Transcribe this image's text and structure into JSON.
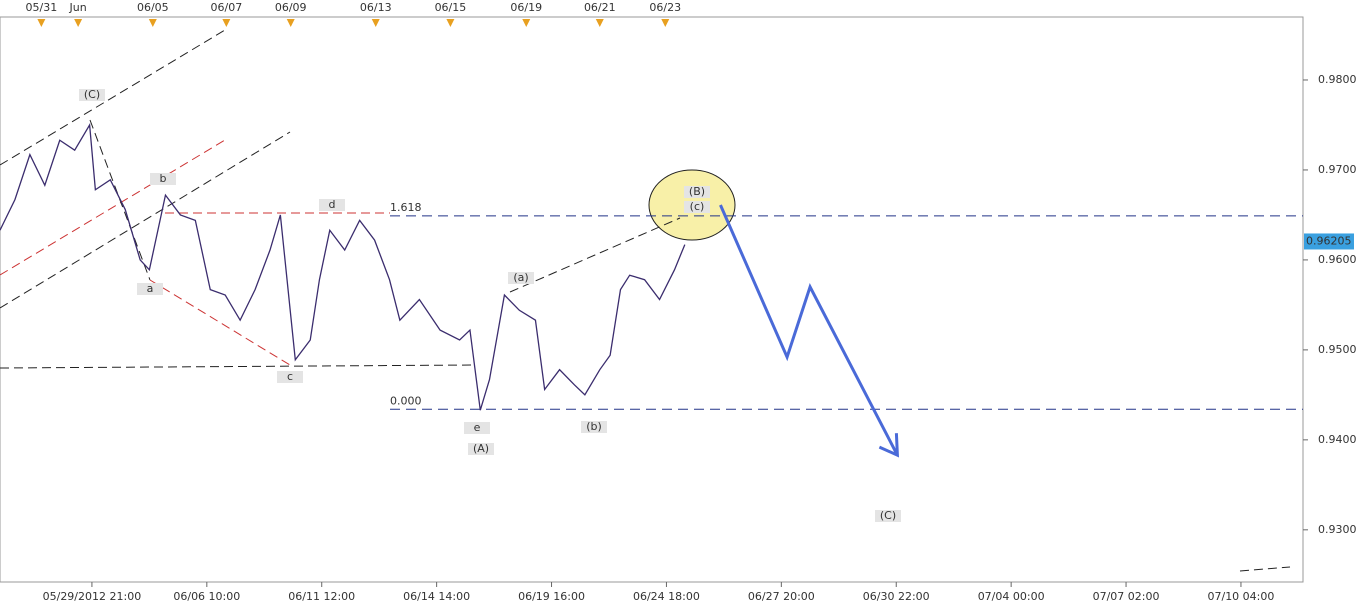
{
  "chart_data": {
    "type": "line",
    "ylim": [
      0.9242,
      0.987
    ],
    "yticks": [
      {
        "value": 0.93,
        "label": "0.9300"
      },
      {
        "value": 0.94,
        "label": "0.9400"
      },
      {
        "value": 0.95,
        "label": "0.9500"
      },
      {
        "value": 0.96,
        "label": "0.9600"
      },
      {
        "value": 0.97,
        "label": "0.9700"
      },
      {
        "value": 0.98,
        "label": "0.9800"
      }
    ],
    "xlim": [
      -0.8,
      10.54
    ],
    "xticks": [
      {
        "value": 0,
        "label": "05/29/2012 21:00"
      },
      {
        "value": 1,
        "label": "06/06 10:00"
      },
      {
        "value": 2,
        "label": "06/11 12:00"
      },
      {
        "value": 3,
        "label": "06/14 14:00"
      },
      {
        "value": 4,
        "label": "06/19 16:00"
      },
      {
        "value": 5,
        "label": "06/24 18:00"
      },
      {
        "value": 6,
        "label": "06/27 20:00"
      },
      {
        "value": 7,
        "label": "06/30 22:00"
      },
      {
        "value": 8,
        "label": "07/04 00:00"
      },
      {
        "value": 9,
        "label": "07/07 02:00"
      },
      {
        "value": 10,
        "label": "07/10 04:00"
      }
    ],
    "events": [
      {
        "value": -0.44,
        "label": "05/31"
      },
      {
        "value": -0.12,
        "label": "Jun"
      },
      {
        "value": 0.53,
        "label": "06/05"
      },
      {
        "value": 1.17,
        "label": "06/07"
      },
      {
        "value": 1.73,
        "label": "06/09"
      },
      {
        "value": 2.47,
        "label": "06/13"
      },
      {
        "value": 3.12,
        "label": "06/15"
      },
      {
        "value": 3.78,
        "label": "06/19"
      },
      {
        "value": 4.42,
        "label": "06/21"
      },
      {
        "value": 4.99,
        "label": "06/23"
      }
    ],
    "series": [
      {
        "color": "#3b2d6e",
        "x": [
          -0.8,
          -0.67,
          -0.54,
          -0.41,
          -0.28,
          -0.15,
          -0.02,
          0.03,
          0.16,
          0.29,
          0.42,
          0.5,
          0.64,
          0.77,
          0.9,
          1.03,
          1.16,
          1.29,
          1.42,
          1.55,
          1.64,
          1.77,
          1.9,
          1.98,
          2.07,
          2.2,
          2.33,
          2.46,
          2.59,
          2.68,
          2.85,
          3.03,
          3.2,
          3.29,
          3.38,
          3.46,
          3.59,
          3.72,
          3.86,
          3.94,
          4.07,
          4.2,
          4.29,
          4.42,
          4.51,
          4.6,
          4.68,
          4.81,
          4.94,
          5.07,
          5.16
        ],
        "values": [
          0.9633,
          0.9667,
          0.9717,
          0.9683,
          0.9733,
          0.9722,
          0.975,
          0.9678,
          0.9689,
          0.9656,
          0.96,
          0.9589,
          0.9672,
          0.965,
          0.9644,
          0.9567,
          0.9561,
          0.9533,
          0.9567,
          0.9611,
          0.965,
          0.9489,
          0.9511,
          0.9578,
          0.9633,
          0.9611,
          0.9644,
          0.9622,
          0.9578,
          0.9533,
          0.9556,
          0.9522,
          0.9511,
          0.9522,
          0.9433,
          0.9467,
          0.9561,
          0.9544,
          0.9533,
          0.9456,
          0.9478,
          0.9461,
          0.945,
          0.9478,
          0.9494,
          0.9567,
          0.9583,
          0.9578,
          0.9556,
          0.9589,
          0.9617
        ]
      },
      {
        "color": "#4a6ad8",
        "x": [
          5.47,
          6.05,
          6.25,
          7.01
        ],
        "values": [
          0.9661,
          0.9492,
          0.957,
          0.9383
        ]
      }
    ],
    "last_price": 0.96205,
    "fib_levels": [
      {
        "value": 0.9649,
        "label": "1.618"
      },
      {
        "value": 0.9434,
        "label": "0.000"
      }
    ],
    "annotations": [
      "(C)",
      "b",
      "a",
      "d",
      "c",
      "(a)",
      "e",
      "(A)",
      "(b)",
      "(B)",
      "(c)",
      "(C)"
    ]
  }
}
